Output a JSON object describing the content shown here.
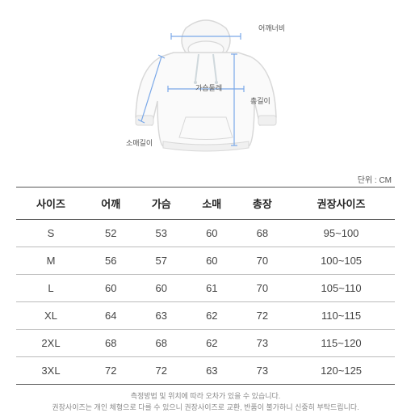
{
  "diagram": {
    "labels": {
      "shoulder_width": "어깨너비",
      "chest": "가슴둘레",
      "length": "총길이",
      "sleeve": "소매길이"
    },
    "outline_color": "#d8d8d8",
    "measure_line_color": "#7aa8e8",
    "measure_line_width": 1.2,
    "hood_drawstring_color": "#cfd8dc"
  },
  "unit_label": "단위 : CM",
  "table": {
    "columns": [
      "사이즈",
      "어깨",
      "가슴",
      "소매",
      "총장",
      "권장사이즈"
    ],
    "rows": [
      [
        "S",
        "52",
        "53",
        "60",
        "68",
        "95~100"
      ],
      [
        "M",
        "56",
        "57",
        "60",
        "70",
        "100~105"
      ],
      [
        "L",
        "60",
        "60",
        "61",
        "70",
        "105~110"
      ],
      [
        "XL",
        "64",
        "63",
        "62",
        "72",
        "110~115"
      ],
      [
        "2XL",
        "68",
        "68",
        "62",
        "73",
        "115~120"
      ],
      [
        "3XL",
        "72",
        "72",
        "63",
        "73",
        "120~125"
      ]
    ],
    "header_border_color": "#555555",
    "row_border_color": "#bbbbbb",
    "header_fontsize": 13,
    "cell_fontsize": 13
  },
  "footnote_lines": [
    "측정방법 및 위치에 따라 오차가 있을 수 있습니다.",
    "권장사이즈는 개인 체형으로 다를 수 있으니 권장사이즈로 교환, 반품이 불가하니 신중히 부탁드립니다."
  ]
}
